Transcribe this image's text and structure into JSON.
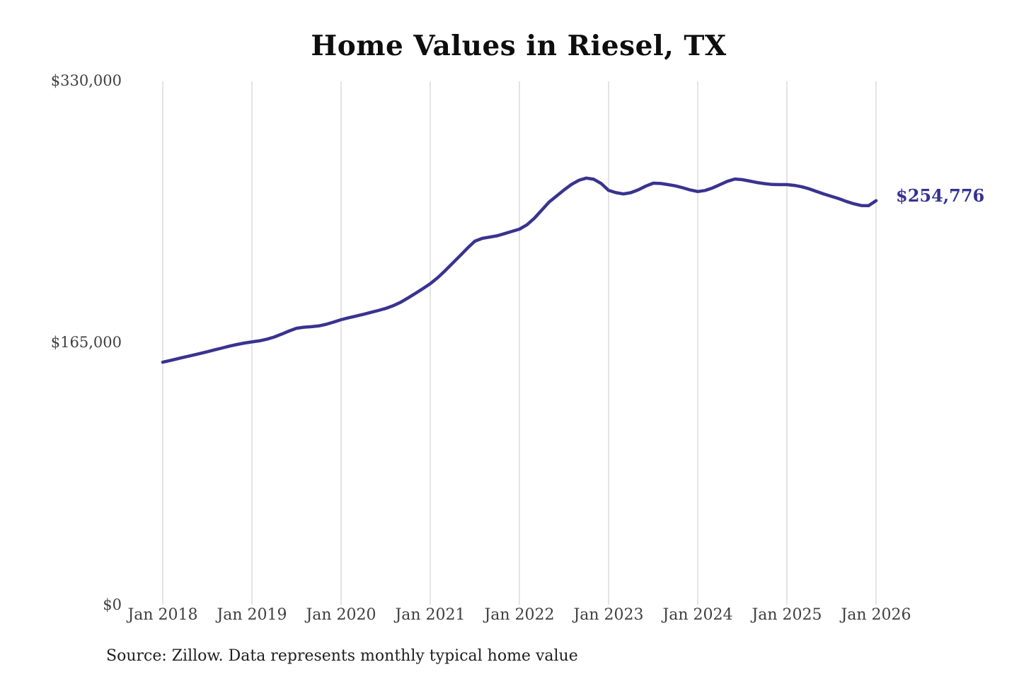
{
  "title": "Home Values in Riesel, TX",
  "end_label": "$254,776",
  "source": "Source: Zillow. Data represents monthly typical home value",
  "colors": {
    "line": "#39338f",
    "end_label_text": "#363192",
    "gridline": "#c9c9c9",
    "axis_text": "#404040",
    "title_text": "#0e0e0e",
    "background": "#ffffff"
  },
  "chart_data": {
    "type": "line",
    "title": "Home Values in Riesel, TX",
    "xlabel": "",
    "ylabel": "",
    "ylim": [
      0,
      330000
    ],
    "y_tick_labels": [
      "$0",
      "$165,000",
      "$330,000"
    ],
    "y_tick_values": [
      0,
      165000,
      330000
    ],
    "x_tick_labels": [
      "Jan 2018",
      "Jan 2019",
      "Jan 2020",
      "Jan 2021",
      "Jan 2022",
      "Jan 2023",
      "Jan 2024",
      "Jan 2025",
      "Jan 2026"
    ],
    "grid": "vertical-only",
    "legend": "none",
    "interval": "monthly",
    "x_start": "Jan 2018",
    "x_end": "Jan 2026",
    "end_value": 254776,
    "series": [
      {
        "name": "Typical home value",
        "values": [
          152900,
          154000,
          155100,
          156200,
          157300,
          158400,
          159500,
          160700,
          161900,
          163100,
          164100,
          165000,
          165700,
          166400,
          167400,
          168800,
          170600,
          172600,
          174300,
          175000,
          175300,
          175800,
          176800,
          178200,
          179700,
          180900,
          182000,
          183100,
          184300,
          185500,
          186800,
          188500,
          190700,
          193400,
          196300,
          199300,
          202400,
          206200,
          210600,
          215300,
          220000,
          224800,
          229200,
          231000,
          231800,
          232600,
          234000,
          235400,
          236800,
          239500,
          243600,
          248800,
          253900,
          257700,
          261500,
          265000,
          267600,
          269000,
          268300,
          265600,
          261300,
          259800,
          259000,
          259800,
          261600,
          263900,
          265800,
          265600,
          264900,
          264100,
          262900,
          261500,
          260500,
          261200,
          262800,
          264900,
          267000,
          268400,
          268000,
          267100,
          266200,
          265500,
          265000,
          264900,
          264900,
          264400,
          263500,
          262200,
          260500,
          258900,
          257500,
          256000,
          254300,
          252800,
          251700,
          251600,
          254776
        ]
      }
    ]
  }
}
